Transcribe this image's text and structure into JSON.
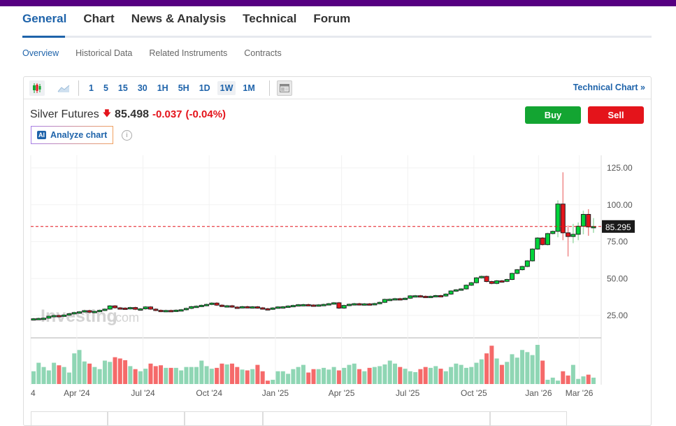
{
  "tabs": [
    "General",
    "Chart",
    "News & Analysis",
    "Technical",
    "Forum"
  ],
  "subtabs": [
    "Overview",
    "Historical Data",
    "Related Instruments",
    "Contracts"
  ],
  "toolbar": {
    "timeframes": [
      "1",
      "5",
      "15",
      "30",
      "1H",
      "5H",
      "1D",
      "1W",
      "1M"
    ],
    "active": "1W",
    "technical_chart": "Technical Chart »"
  },
  "quote": {
    "name": "Silver Futures",
    "price": "85.498",
    "change": "-0.037",
    "change_pct": "(-0.04%)",
    "direction": "down"
  },
  "buttons": {
    "buy": "Buy",
    "sell": "Sell",
    "analyze": "Analyze chart",
    "ai_badge": "AI"
  },
  "watermark": {
    "brand": "Investing",
    "suffix": ".com"
  },
  "colors": {
    "up": "#00d43a",
    "down": "#e4141b",
    "vol_up": "#8fd6b4",
    "vol_down": "#f56a6a",
    "accent": "#1e63aa",
    "topbar": "#560081"
  },
  "chart_data": {
    "type": "candlestick",
    "title": "Silver Futures (1W)",
    "ylim": [
      10,
      133
    ],
    "yticks": [
      "125.00",
      "100.00",
      "75.00",
      "50.00",
      "25.00"
    ],
    "ytick_values": [
      125,
      100,
      75,
      50,
      25
    ],
    "last_price_label": "85.295",
    "last_price": 85.295,
    "xticks": [
      "4",
      "Apr '24",
      "Jul '24",
      "Oct '24",
      "Jan '25",
      "Apr '25",
      "Jul '25",
      "Oct '25",
      "Jan '26",
      "Mar '26"
    ],
    "xtick_index": [
      0,
      8.5,
      21.5,
      34.5,
      47.5,
      60.5,
      73.5,
      86.5,
      99.2,
      107.2
    ],
    "closes": [
      22.8,
      23.0,
      23.2,
      24.5,
      25.0,
      24.8,
      25.3,
      26.2,
      27.0,
      27.5,
      28.3,
      27.2,
      27.8,
      28.5,
      29.3,
      31.5,
      30.2,
      30.0,
      29.6,
      30.4,
      29.2,
      29.5,
      30.8,
      29.3,
      28.5,
      27.9,
      28.4,
      28.0,
      28.6,
      28.9,
      29.8,
      31.0,
      31.3,
      31.9,
      32.5,
      33.4,
      32.0,
      31.3,
      31.6,
      30.7,
      30.4,
      31.0,
      30.7,
      30.9,
      30.2,
      29.6,
      29.3,
      30.1,
      30.8,
      30.9,
      31.4,
      31.8,
      32.3,
      32.4,
      32.1,
      31.6,
      32.2,
      32.5,
      33.0,
      33.6,
      30.0,
      31.8,
      32.6,
      33.0,
      32.4,
      32.9,
      32.6,
      33.1,
      33.9,
      35.9,
      36.0,
      36.4,
      36.1,
      36.7,
      38.3,
      38.4,
      38.0,
      37.5,
      38.0,
      38.5,
      38.2,
      39.5,
      41.6,
      42.4,
      43.0,
      45.5,
      47.2,
      50.5,
      51.5,
      48.0,
      46.7,
      48.5,
      48.1,
      49.4,
      53.5,
      56.0,
      58.2,
      62.0,
      70.0,
      77.5,
      73.0,
      80.5,
      82.0,
      100.5,
      81.0,
      78.5,
      80.0,
      85.5,
      93.5,
      85.0,
      85.3
    ],
    "wick_overrides": {
      "103": [
        103,
        78
      ],
      "104": [
        122,
        76
      ],
      "105": [
        86,
        65
      ],
      "106": [
        87,
        74
      ],
      "107": [
        88,
        76
      ],
      "108": [
        96,
        80
      ],
      "109": [
        97,
        79
      ],
      "110": [
        91,
        81
      ]
    },
    "volumes": [
      30,
      50,
      40,
      32,
      50,
      44,
      40,
      27,
      72,
      80,
      53,
      48,
      40,
      35,
      55,
      52,
      63,
      60,
      56,
      42,
      35,
      30,
      36,
      48,
      42,
      44,
      38,
      38,
      38,
      32,
      40,
      40,
      40,
      55,
      42,
      36,
      38,
      48,
      46,
      48,
      40,
      34,
      32,
      35,
      45,
      30,
      8,
      10,
      30,
      30,
      24,
      35,
      40,
      45,
      27,
      35,
      35,
      38,
      34,
      40,
      32,
      38,
      45,
      48,
      35,
      30,
      38,
      40,
      42,
      46,
      55,
      48,
      40,
      36,
      30,
      28,
      35,
      40,
      38,
      42,
      36,
      30,
      40,
      48,
      45,
      38,
      40,
      50,
      58,
      72,
      90,
      60,
      45,
      52,
      70,
      62,
      80,
      75,
      68,
      92,
      55,
      10,
      15,
      8,
      30,
      20,
      45,
      12,
      18,
      22,
      15
    ]
  }
}
